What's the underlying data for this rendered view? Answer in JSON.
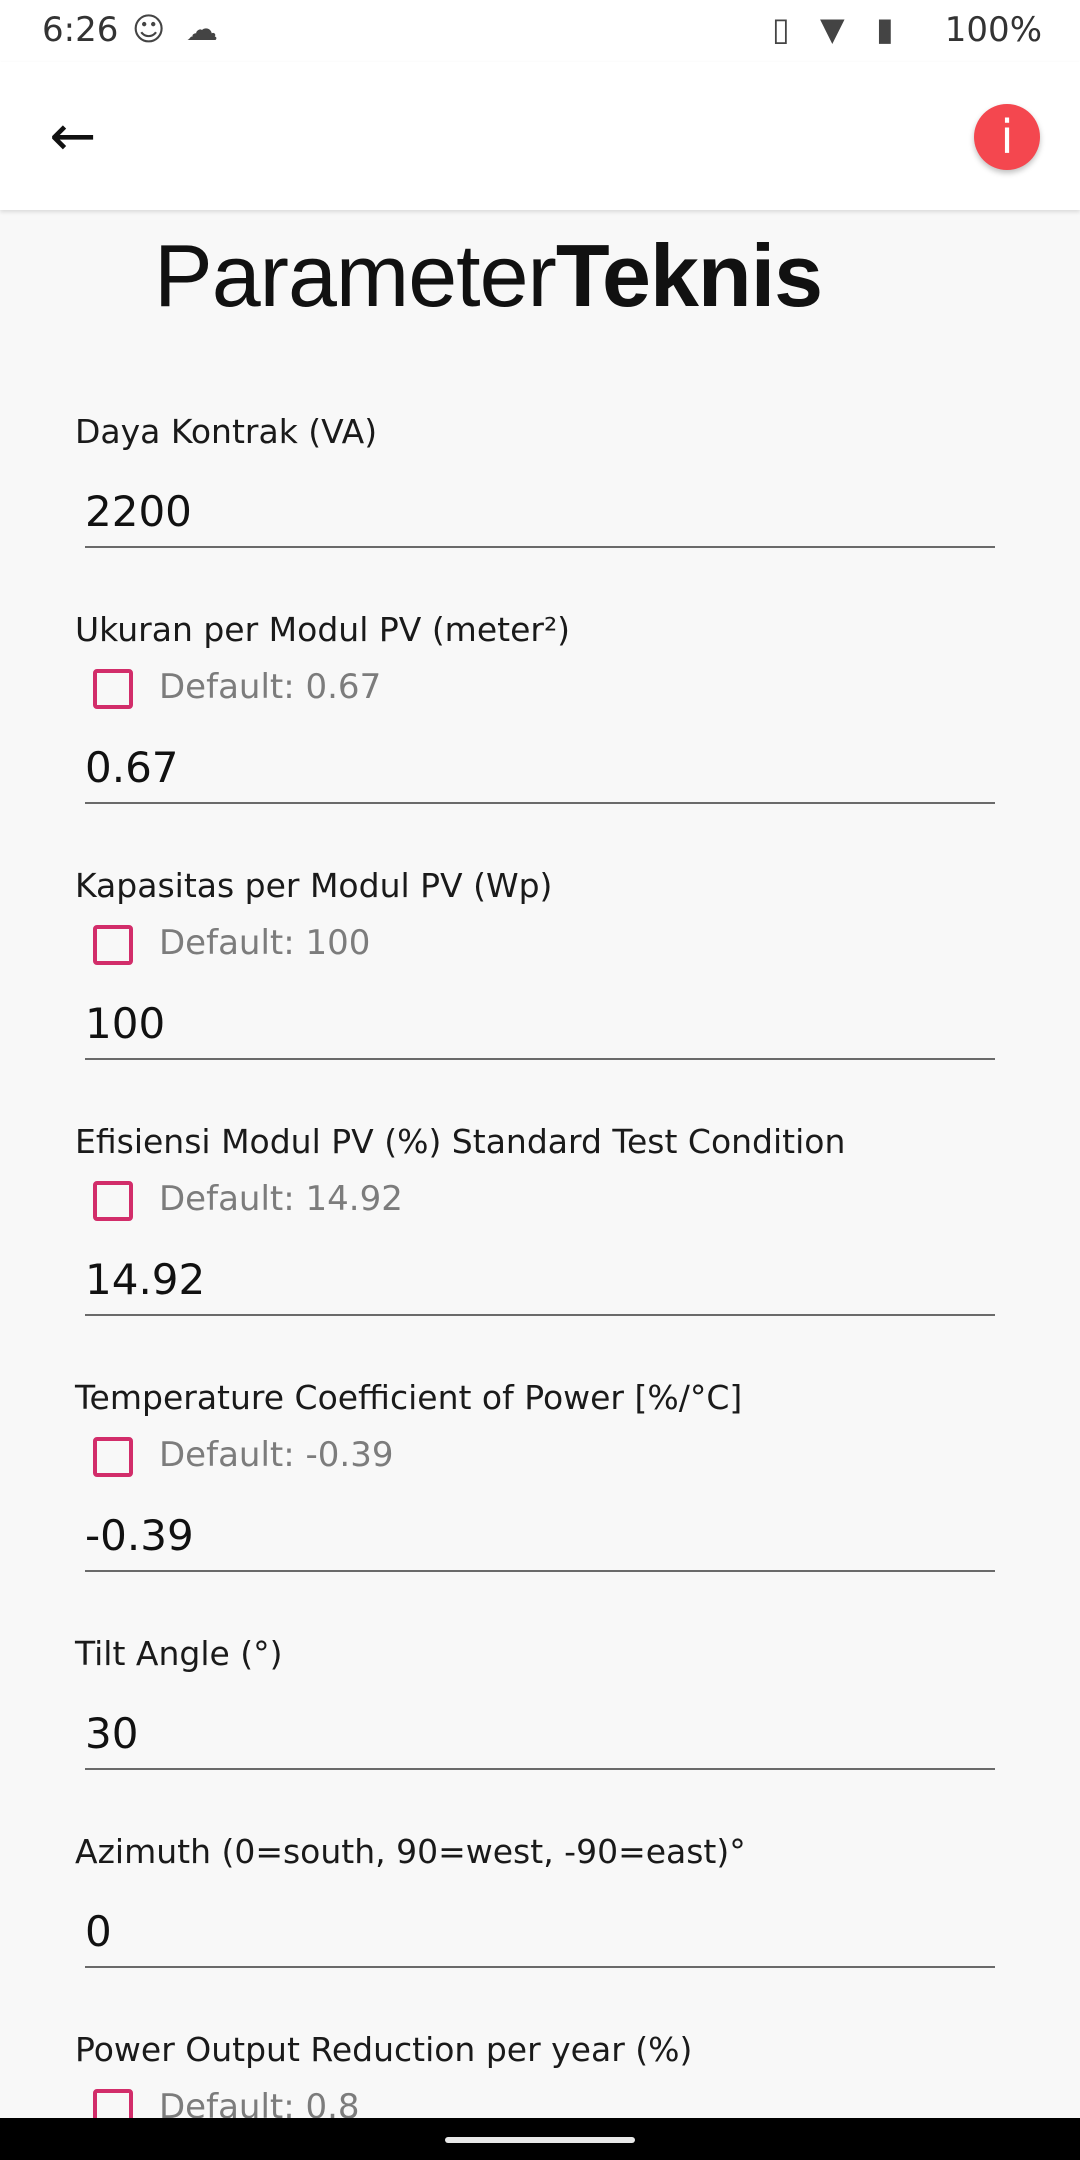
{
  "status_bar": {
    "time": "6:26",
    "battery": "100%",
    "icons": [
      "notification-icon",
      "cloud-icon",
      "vibrate-icon",
      "wifi-icon",
      "battery-icon"
    ]
  },
  "app_bar": {
    "back_icon": "arrow-left-icon",
    "info_icon": "info-icon",
    "info_glyph": "i",
    "info_color": "#f4474f"
  },
  "title": {
    "regular": "Parameter",
    "bold": "Teknis"
  },
  "accent_color": "#d22d6a",
  "fields": [
    {
      "label": "Daya Kontrak (VA)",
      "value": "2200"
    },
    {
      "label": "Ukuran per Modul PV (meter²)",
      "default_label": "Default: 0.67",
      "checked": false,
      "value": "0.67"
    },
    {
      "label": "Kapasitas per Modul PV (Wp)",
      "default_label": "Default: 100",
      "checked": false,
      "value": "100"
    },
    {
      "label": "Efisiensi Modul PV (%) Standard Test Condition",
      "default_label": "Default: 14.92",
      "checked": false,
      "value": "14.92"
    },
    {
      "label": "Temperature Coefficient of Power [%/°C]",
      "default_label": "Default: -0.39",
      "checked": false,
      "value": "-0.39"
    },
    {
      "label": "Tilt Angle (°)",
      "value": "30"
    },
    {
      "label": "Azimuth (0=south, 90=west, -90=east)°",
      "value": "0"
    },
    {
      "label": "Power Output Reduction per year (%)",
      "default_label": "Default: 0.8",
      "checked": false
    }
  ]
}
